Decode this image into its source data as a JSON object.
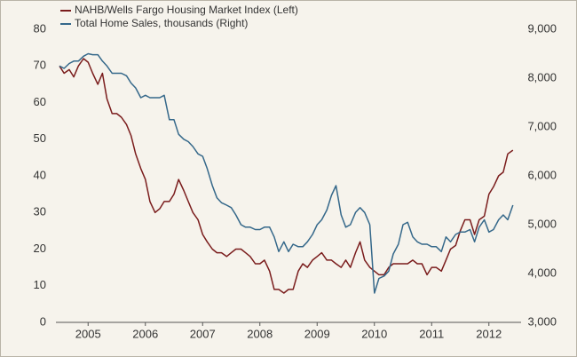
{
  "chart_data": {
    "type": "line",
    "x": [
      2005.0,
      2005.08,
      2005.17,
      2005.25,
      2005.33,
      2005.42,
      2005.5,
      2005.58,
      2005.67,
      2005.75,
      2005.83,
      2005.92,
      2006.0,
      2006.08,
      2006.17,
      2006.25,
      2006.33,
      2006.42,
      2006.5,
      2006.58,
      2006.67,
      2006.75,
      2006.83,
      2006.92,
      2007.0,
      2007.08,
      2007.17,
      2007.25,
      2007.33,
      2007.42,
      2007.5,
      2007.58,
      2007.67,
      2007.75,
      2007.83,
      2007.92,
      2008.0,
      2008.08,
      2008.17,
      2008.25,
      2008.33,
      2008.42,
      2008.5,
      2008.58,
      2008.67,
      2008.75,
      2008.83,
      2008.92,
      2009.0,
      2009.08,
      2009.17,
      2009.25,
      2009.33,
      2009.42,
      2009.5,
      2009.58,
      2009.67,
      2009.75,
      2009.83,
      2009.92,
      2010.0,
      2010.08,
      2010.17,
      2010.25,
      2010.33,
      2010.42,
      2010.5,
      2010.58,
      2010.67,
      2010.75,
      2010.83,
      2010.92,
      2011.0,
      2011.08,
      2011.17,
      2011.25,
      2011.33,
      2011.42,
      2011.5,
      2011.58,
      2011.67,
      2011.75,
      2011.83,
      2011.92,
      2012.0,
      2012.08,
      2012.17,
      2012.25,
      2012.33,
      2012.42,
      2012.5,
      2012.58,
      2012.67,
      2012.75,
      2012.83,
      2012.92
    ],
    "series": [
      {
        "name": "NAHB/Wells Fargo Housing Market Index (Left)",
        "color": "#7a1c1c",
        "values": [
          70,
          68,
          69,
          67,
          70,
          72,
          71,
          68,
          65,
          68,
          61,
          57,
          57,
          56,
          54,
          51,
          46,
          42,
          39,
          33,
          30,
          31,
          33,
          33,
          35,
          39,
          36,
          33,
          30,
          28,
          24,
          22,
          20,
          19,
          19,
          18,
          19,
          20,
          20,
          19,
          18,
          16,
          16,
          17,
          14,
          9,
          9,
          8,
          9,
          9,
          14,
          16,
          15,
          17,
          18,
          19,
          17,
          17,
          16,
          15,
          17,
          15,
          19,
          22,
          17,
          15,
          14,
          13,
          13,
          15,
          16,
          16,
          16,
          16,
          17,
          16,
          16,
          13,
          15,
          15,
          14,
          17,
          20,
          21,
          25,
          28,
          28,
          24,
          28,
          29,
          35,
          37,
          40,
          41,
          46,
          47
        ]
      },
      {
        "name": "Total Home Sales, thousands (Right)",
        "color": "#35688a",
        "axis": "y2",
        "values": [
          8250,
          8200,
          8300,
          8350,
          8350,
          8450,
          8500,
          8480,
          8480,
          8350,
          8250,
          8100,
          8100,
          8100,
          8050,
          7900,
          7800,
          7600,
          7650,
          7600,
          7600,
          7600,
          7650,
          7150,
          7150,
          6850,
          6750,
          6700,
          6600,
          6450,
          6400,
          6150,
          5800,
          5550,
          5450,
          5400,
          5350,
          5200,
          5000,
          4950,
          4950,
          4900,
          4900,
          4950,
          4950,
          4750,
          4450,
          4650,
          4450,
          4600,
          4550,
          4550,
          4650,
          4800,
          5000,
          5100,
          5300,
          5600,
          5800,
          5200,
          4950,
          5000,
          5250,
          5350,
          5250,
          5000,
          3600,
          3900,
          3950,
          4050,
          4400,
          4600,
          5000,
          5050,
          4750,
          4650,
          4600,
          4600,
          4550,
          4550,
          4450,
          4750,
          4650,
          4800,
          4850,
          4850,
          4900,
          4650,
          4950,
          5100,
          4850,
          4900,
          5100,
          5200,
          5100,
          5400
        ]
      }
    ],
    "xlim": [
      2005,
      2013
    ],
    "xticks": [
      {
        "value": 2005.5,
        "label": "2005"
      },
      {
        "value": 2006.5,
        "label": "2006"
      },
      {
        "value": 2007.5,
        "label": "2007"
      },
      {
        "value": 2008.5,
        "label": "2008"
      },
      {
        "value": 2009.5,
        "label": "2009"
      },
      {
        "value": 2010.5,
        "label": "2010"
      },
      {
        "value": 2011.5,
        "label": "2011"
      },
      {
        "value": 2012.5,
        "label": "2012"
      }
    ],
    "ylim": [
      0,
      80
    ],
    "yticks": [
      0,
      10,
      20,
      30,
      40,
      50,
      60,
      70,
      80
    ],
    "y2lim": [
      3000,
      9000
    ],
    "y2ticks": [
      {
        "value": 3000,
        "label": "3,000"
      },
      {
        "value": 4000,
        "label": "4,000"
      },
      {
        "value": 5000,
        "label": "5,000"
      },
      {
        "value": 6000,
        "label": "6,000"
      },
      {
        "value": 7000,
        "label": "7,000"
      },
      {
        "value": 8000,
        "label": "8,000"
      },
      {
        "value": 9000,
        "label": "9,000"
      }
    ],
    "legend": "top-left",
    "grid": false
  }
}
